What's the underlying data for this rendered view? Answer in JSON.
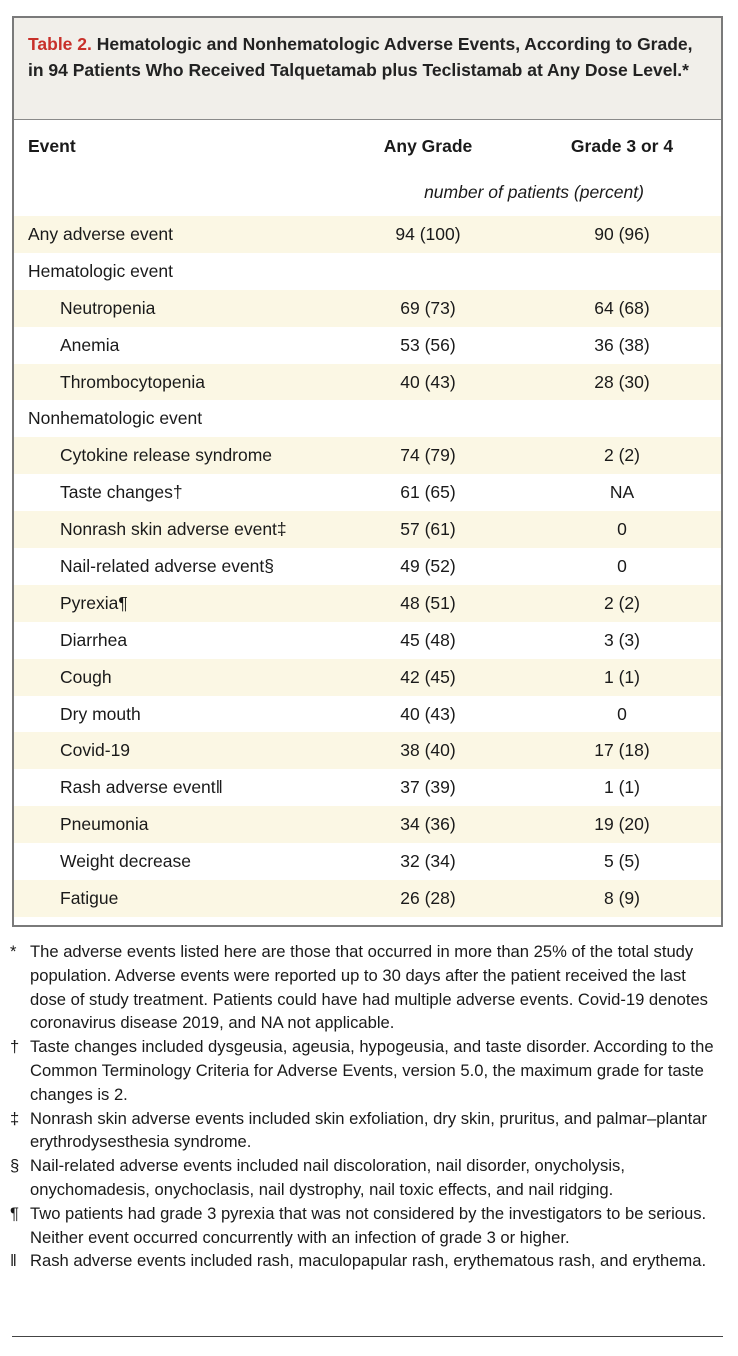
{
  "table": {
    "label": "Table 2.",
    "title": "Hematologic and Nonhematologic Adverse Events, According to Grade, in 94 Patients Who Received Talquetamab plus Teclistamab at Any Dose Level.*",
    "headers": {
      "event": "Event",
      "any_grade": "Any Grade",
      "grade34": "Grade 3 or 4",
      "unit": "number of patients (percent)"
    },
    "rows": [
      {
        "event": "Any adverse event",
        "any": "94 (100)",
        "g34": "90 (96)",
        "level": 0,
        "shaded": true
      },
      {
        "event": "Hematologic event",
        "any": "",
        "g34": "",
        "level": 0,
        "shaded": false
      },
      {
        "event": "Neutropenia",
        "any": "69 (73)",
        "g34": "64 (68)",
        "level": 1,
        "shaded": true
      },
      {
        "event": "Anemia",
        "any": "53 (56)",
        "g34": "36 (38)",
        "level": 1,
        "shaded": false
      },
      {
        "event": "Thrombocytopenia",
        "any": "40 (43)",
        "g34": "28 (30)",
        "level": 1,
        "shaded": true
      },
      {
        "event": "Nonhematologic event",
        "any": "",
        "g34": "",
        "level": 0,
        "shaded": false
      },
      {
        "event": "Cytokine release syndrome",
        "any": "74 (79)",
        "g34": "2 (2)",
        "level": 1,
        "shaded": true
      },
      {
        "event": "Taste changes†",
        "any": "61 (65)",
        "g34": "NA",
        "level": 1,
        "shaded": false
      },
      {
        "event": "Nonrash skin adverse event‡",
        "any": "57 (61)",
        "g34": "0",
        "level": 1,
        "shaded": true
      },
      {
        "event": "Nail-related adverse event§",
        "any": "49 (52)",
        "g34": "0",
        "level": 1,
        "shaded": false
      },
      {
        "event": "Pyrexia¶",
        "any": "48 (51)",
        "g34": "2 (2)",
        "level": 1,
        "shaded": true
      },
      {
        "event": "Diarrhea",
        "any": "45 (48)",
        "g34": "3 (3)",
        "level": 1,
        "shaded": false
      },
      {
        "event": "Cough",
        "any": "42 (45)",
        "g34": "1 (1)",
        "level": 1,
        "shaded": true
      },
      {
        "event": "Dry mouth",
        "any": "40 (43)",
        "g34": "0",
        "level": 1,
        "shaded": false
      },
      {
        "event": "Covid-19",
        "any": "38 (40)",
        "g34": "17 (18)",
        "level": 1,
        "shaded": true
      },
      {
        "event": "Rash adverse event‖",
        "any": "37 (39)",
        "g34": "1 (1)",
        "level": 1,
        "shaded": false
      },
      {
        "event": "Pneumonia",
        "any": "34 (36)",
        "g34": "19 (20)",
        "level": 1,
        "shaded": true
      },
      {
        "event": "Weight decrease",
        "any": "32 (34)",
        "g34": "5 (5)",
        "level": 1,
        "shaded": false
      },
      {
        "event": "Fatigue",
        "any": "26 (28)",
        "g34": "8 (9)",
        "level": 1,
        "shaded": true
      }
    ]
  },
  "footnotes": [
    {
      "symbol": "*",
      "text": "The adverse events listed here are those that occurred in more than 25% of the total study population. Adverse events were reported up to 30 days after the patient received the last dose of study treatment. Patients could have had multiple adverse events. Covid-19 denotes coronavirus disease 2019, and NA not applicable."
    },
    {
      "symbol": "†",
      "text": "Taste changes included dysgeusia, ageusia, hypogeusia, and taste disorder. According to the Common Terminology Criteria for Adverse Events, version 5.0, the maximum grade for taste changes is 2."
    },
    {
      "symbol": "‡",
      "text": "Nonrash skin adverse events included skin exfoliation, dry skin, pruritus, and palmar–plantar erythrodysesthesia syndrome."
    },
    {
      "symbol": "§",
      "text": "Nail-related adverse events included nail discoloration, nail disorder, onycholysis, onychomadesis, onychoclasis, nail dystrophy, nail toxic effects, and nail ridging."
    },
    {
      "symbol": "¶",
      "text": "Two patients had grade 3 pyrexia that was not considered by the investigators to be serious. Neither event occurred concurrently with an infection of grade 3 or higher."
    },
    {
      "symbol": "‖",
      "text": "Rash adverse events included rash, maculopapular rash, erythematous rash, and erythema."
    }
  ],
  "colors": {
    "label_red": "#c8302a",
    "caption_bg": "#f1efea",
    "row_shade": "#fbf7e4",
    "border": "#7a7a7a"
  }
}
